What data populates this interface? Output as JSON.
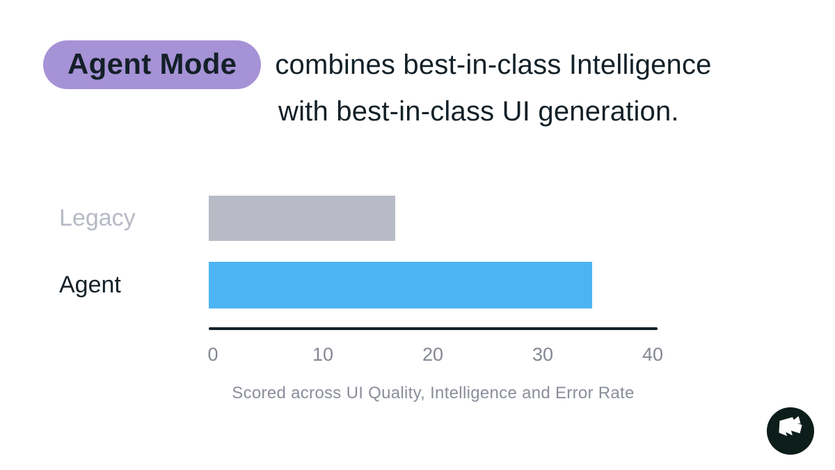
{
  "title": {
    "badge": "Agent Mode",
    "line1_rest": "combines best-in-class Intelligence",
    "line2": "with best-in-class UI generation."
  },
  "chart_data": {
    "type": "bar",
    "orientation": "horizontal",
    "categories": [
      "Legacy",
      "Agent"
    ],
    "values": [
      17,
      35
    ],
    "xlim": [
      0,
      40
    ],
    "xticks": [
      0,
      10,
      20,
      30,
      40
    ],
    "caption": "Scored across UI Quality, Intelligence and Error Rate",
    "bar_colors": [
      "#b8bbc6",
      "#4db4f4"
    ],
    "label_colors": [
      "#b7bac5",
      "#132028"
    ],
    "grid": false,
    "legend": false,
    "axis_line_color": "#132028",
    "tick_label_color": "#848893"
  },
  "colors": {
    "background": "#ffffff",
    "badge_bg": "#a692d6",
    "text_dark": "#132028",
    "caption": "#8a8e9a",
    "logo_bg": "#0c1d1a",
    "logo_fg": "#ffffff"
  },
  "logo": {
    "icon": "flag-icon"
  }
}
